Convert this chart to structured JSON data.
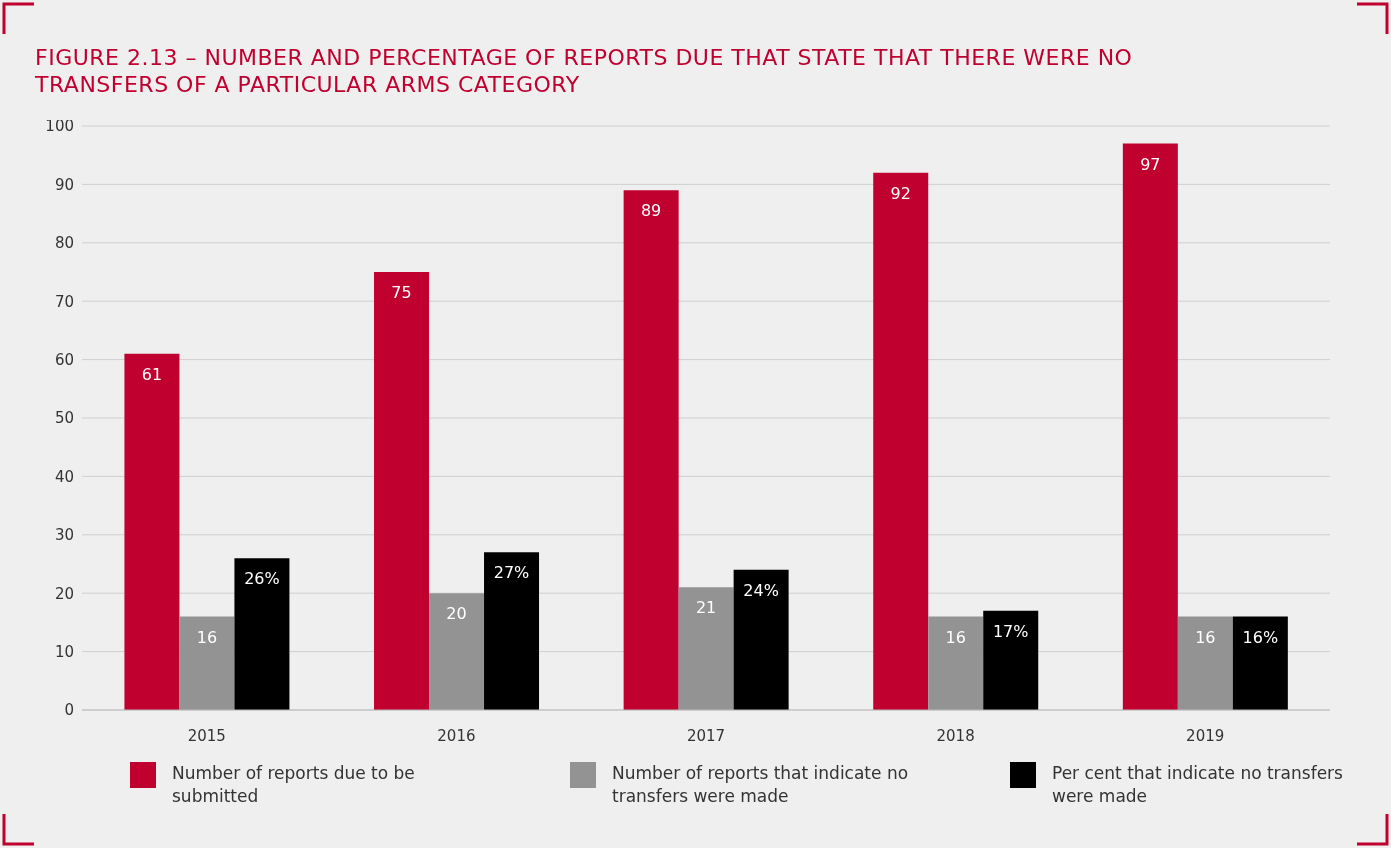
{
  "chart_data": {
    "type": "bar",
    "title": "FIGURE 2.13 – NUMBER AND PERCENTAGE OF REPORTS DUE THAT STATE THAT THERE WERE NO TRANSFERS OF A PARTICULAR ARMS CATEGORY",
    "categories": [
      "2015",
      "2016",
      "2017",
      "2018",
      "2019"
    ],
    "series": [
      {
        "name": "Number of reports due to be submitted",
        "color": "#c0002f",
        "values": [
          61,
          75,
          89,
          92,
          97
        ],
        "value_labels": [
          "61",
          "75",
          "89",
          "92",
          "97"
        ]
      },
      {
        "name": "Number of reports that indicate no transfers were made",
        "color": "#939393",
        "values": [
          16,
          20,
          21,
          16,
          16
        ],
        "value_labels": [
          "16",
          "20",
          "21",
          "16",
          "16"
        ]
      },
      {
        "name": "Per cent that indicate no transfers were made",
        "color": "#000000",
        "values": [
          26,
          27,
          24,
          17,
          16
        ],
        "value_labels": [
          "26%",
          "27%",
          "24%",
          "17%",
          "16%"
        ]
      }
    ],
    "ylim": [
      0,
      100
    ],
    "yticks": [
      0,
      10,
      20,
      30,
      40,
      50,
      60,
      70,
      80,
      90,
      100
    ],
    "grid": "y",
    "legend": "bottom"
  }
}
